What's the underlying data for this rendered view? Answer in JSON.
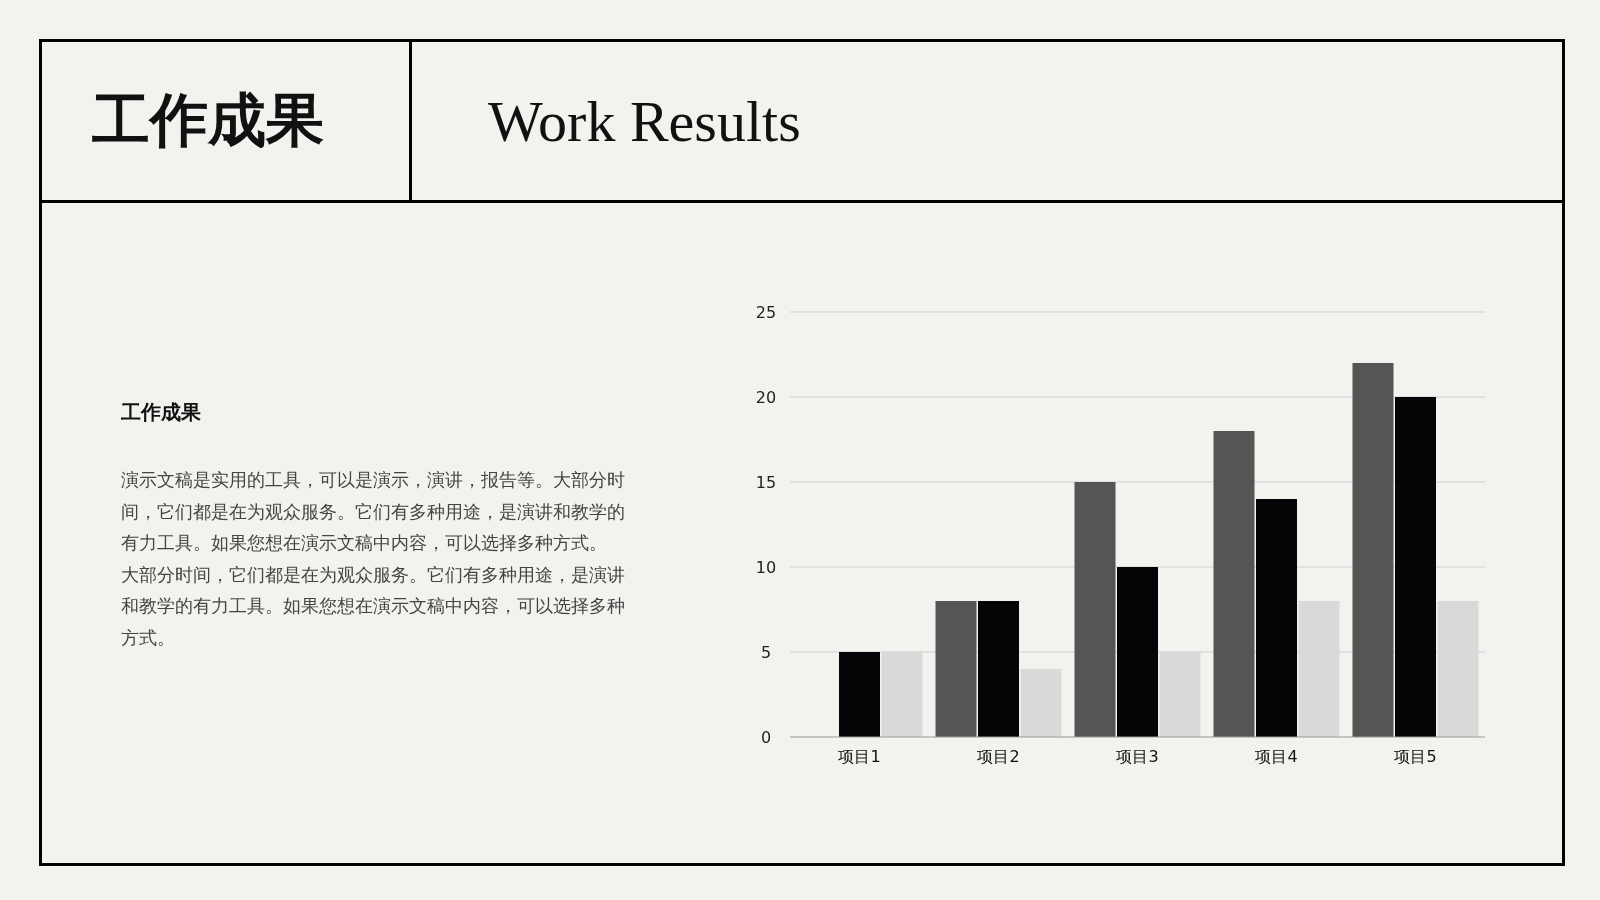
{
  "chart_data": {
    "type": "bar",
    "title": "工作成果",
    "subtitle": "Work Results",
    "annotations": [
      "工作成果",
      "演示文稿是实用的工具，可以是演示，演讲，报告等。大部分时间，它们都是在为观众服务。它们有多种用途，是演讲和教学的有力工具。如果您想在演示文稿中内容，可以选择多种方式。",
      "大部分时间，它们都是在为观众服务。它们有多种用途，是演讲和教学的有力工具。如果您想在演示文稿中内容，可以选择多种方式。"
    ],
    "categories": [
      "项目1",
      "项目2",
      "项目3",
      "项目4",
      "项目5"
    ],
    "series": [
      {
        "color": "#555555",
        "values": [
          null,
          8,
          15,
          18,
          22
        ]
      },
      {
        "color": "#050508",
        "values": [
          5,
          8,
          10,
          14,
          20
        ]
      },
      {
        "color": "#d9d9d9",
        "values": [
          5,
          4,
          5,
          8,
          8
        ]
      }
    ],
    "ylim": [
      0,
      25
    ],
    "yticks": [
      0,
      5,
      10,
      15,
      20,
      25
    ],
    "grid": "y"
  }
}
